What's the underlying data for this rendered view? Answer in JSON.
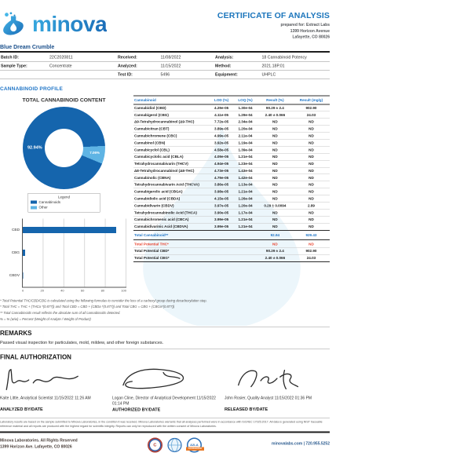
{
  "header": {
    "brand": "minova",
    "title": "CERTIFICATE OF ANALYSIS",
    "prepared_for": "prepared for: Extract Labs",
    "address_line1": "1399 Horizon Avenue",
    "address_line2": "Lafayette, CO 80026",
    "product": "Blue Dream Crumble"
  },
  "sample_info": {
    "batch_label": "Batch ID:",
    "batch": "22C2020811",
    "sample_type_label": "Sample Type:",
    "sample_type": "Concentrate",
    "received_label": "Received:",
    "received": "11/08/2022",
    "analyzed_label": "Analyzed:",
    "analyzed": "11/15/2022",
    "test_id_label": "Test ID:",
    "test_id": "5496",
    "analysis_label": "Analysis:",
    "analysis": "18 Cannabinoid Potency",
    "method_label": "Method:",
    "method": "2021.18P.01",
    "equipment_label": "Equipment:",
    "equipment": "UHPLC"
  },
  "profile_heading": "CANNABINOID PROFILE",
  "chart_data": [
    {
      "type": "pie",
      "title": "TOTAL CANNABINOID CONTENT",
      "labels": [
        "Cannabinoids",
        "Other"
      ],
      "values": [
        92.94,
        7.06
      ],
      "display_labels": [
        "92.94%",
        "7.06%"
      ],
      "colors": [
        "#1565ad",
        "#5fb4e4"
      ],
      "hole": 0.47,
      "legend": {
        "title": "Legend",
        "items": [
          "Cannabinoids",
          "Other"
        ]
      }
    },
    {
      "type": "bar",
      "orientation": "horizontal",
      "categories": [
        "CBD",
        "CBG",
        "CBDV"
      ],
      "values": [
        90.29,
        2.4,
        0.29
      ],
      "xlim": [
        0,
        100
      ],
      "xticks": [
        0,
        20,
        40,
        60,
        80,
        100
      ],
      "grid": true,
      "title": "",
      "xlabel": "",
      "ylabel": ""
    }
  ],
  "table": {
    "headers": [
      "Cannabinoid",
      "LOD (%)",
      "LOQ (%)",
      "Result (%)",
      "Result (mg/g)"
    ],
    "rows": [
      {
        "name": "Cannabidiol (CBD)",
        "lod": "4.29e-05",
        "loq": "1.30e-04",
        "result": "90.29 ± 2.4",
        "mg": "902.90"
      },
      {
        "name": "Cannabigerol (CBG)",
        "lod": "4.11e-05",
        "loq": "1.29e-04",
        "result": "2.40 ± 0.066",
        "mg": "24.03"
      },
      {
        "name": "Δ9-Tetrahydrocannabinol (Δ9-THC)",
        "lod": "7.72e-05",
        "loq": "2.34e-04",
        "result": "ND",
        "mg": "ND"
      },
      {
        "name": "Cannabicitran (CBT)",
        "lod": "3.89e-05",
        "loq": "1.20e-04",
        "result": "ND",
        "mg": "ND"
      },
      {
        "name": "Cannabichromene (CBC)",
        "lod": "4.99e-05",
        "loq": "2.11e-04",
        "result": "ND",
        "mg": "ND"
      },
      {
        "name": "Cannabinol (CBN)",
        "lod": "3.92e-05",
        "loq": "1.19e-04",
        "result": "ND",
        "mg": "ND"
      },
      {
        "name": "Cannabicyclol (CBL)",
        "lod": "4.58e-05",
        "loq": "1.39e-04",
        "result": "ND",
        "mg": "ND"
      },
      {
        "name": "Cannabicyclolic acid (CBLA)",
        "lod": "4.09e-05",
        "loq": "1.21e-04",
        "result": "ND",
        "mg": "ND"
      },
      {
        "name": "Tetrahydrocannabivarin (THCV)",
        "lod": "4.94e-05",
        "loq": "1.23e-04",
        "result": "ND",
        "mg": "ND"
      },
      {
        "name": "Δ8-Tetrahydrocannabinol (Δ8-THC)",
        "lod": "4.73e-05",
        "loq": "1.43e-04",
        "result": "ND",
        "mg": "ND"
      },
      {
        "name": "Cannabinolic (CBNA)",
        "lod": "4.79e-05",
        "loq": "1.42e-04",
        "result": "ND",
        "mg": "ND"
      },
      {
        "name": "Tetrahydrocannabivarin Acid (THCVA)",
        "lod": "3.86e-05",
        "loq": "1.13e-04",
        "result": "ND",
        "mg": "ND"
      },
      {
        "name": "Cannabigerolic acid (CBGA)",
        "lod": "3.98e-05",
        "loq": "1.21e-04",
        "result": "ND",
        "mg": "ND"
      },
      {
        "name": "Cannabidiolic acid (CBDA)",
        "lod": "4.15e-05",
        "loq": "1.26e-04",
        "result": "ND",
        "mg": "ND"
      },
      {
        "name": "Cannabidivarin (CBDV)",
        "lod": "3.97e-05",
        "loq": "1.20e-04",
        "result": "0.29 ± 0.0094",
        "mg": "2.89"
      },
      {
        "name": "Tetrahydrocannabinolic Acid (THCA)",
        "lod": "3.90e-05",
        "loq": "1.17e-04",
        "result": "ND",
        "mg": "ND"
      },
      {
        "name": "Cannabichromenic acid (CBCA)",
        "lod": "3.99e-05",
        "loq": "1.21e-04",
        "result": "ND",
        "mg": "ND"
      },
      {
        "name": "Cannabidivarinic Acid (CBDVA)",
        "lod": "3.99e-05",
        "loq": "1.21e-04",
        "result": "ND",
        "mg": "ND"
      }
    ],
    "totals": [
      {
        "name": "Total Cannabinoid**",
        "lod": "",
        "loq": "",
        "result": "92.94",
        "mg": "929.43",
        "style": "blue"
      },
      {
        "name": "Total Potential THC*",
        "lod": "",
        "loq": "",
        "result": "ND",
        "mg": "ND",
        "style": "red"
      },
      {
        "name": "Total Potential CBD*",
        "lod": "",
        "loq": "",
        "result": "90.29 ± 2.4",
        "mg": "902.90",
        "style": "dark"
      },
      {
        "name": "Total Potential CBG*",
        "lod": "",
        "loq": "",
        "result": "2.40 ± 0.066",
        "mg": "24.03",
        "style": "dark"
      }
    ]
  },
  "footnotes": [
    "* Total Potential THC/CBD/CBG is calculated using the following formulas to consider the loss of a carboxyl group during decarboxylation step.",
    "* Total THC = THC + (THCa *(0.877)) and Total CBD = CBD + (CBDa *(0.877)) and Total CBG = CBG + (CBGa*(0.877))",
    "** Total Cannabinoids result reflects the absolute sum of all cannabinoids detected.",
    "% = % (w/w) = Percent (Weight of Analyte / Weight of Product)"
  ],
  "remarks": {
    "heading": "REMARKS",
    "text": "Passed visual inspection for particulates, mold, mildew, and other foreign substances."
  },
  "authorization": {
    "heading": "FINAL AUTHORIZATION",
    "signers": [
      {
        "name_line": "Kaite Little, Analytical Scientist 11/15/2022 11:26 AM",
        "role": "ANALYZED BY/DATE"
      },
      {
        "name_line": "Logan Cline, Director of Analytical Development 11/15/2022 01:14 PM",
        "role": "AUTHORIZED BY/DATE"
      },
      {
        "name_line": "John Rosier, Quality Analyst 11/15/2022 01:36 PM",
        "role": "RELEASED BY/DATE"
      }
    ]
  },
  "disclaimer": "Laboratory results are based on the sample submitted to Minova Laboratories, in the condition it was received. Minova Laboratories warrants that all analyses performed were in accordance with ISO/IEC 17025:2017. All data is generated using NIST traceable reference material and all reports are produced with the highest regard for scientific integrity. Reports can only be reproduced with the written consent of Minova Laboratories.",
  "footer": {
    "left1": "Minova Laboratories. All Rights Reserved",
    "left2": "1399 Horizon Ave. Lafayette, CO 80026",
    "badge_co": "C",
    "badge_a2la": "A2LA",
    "badge_a2la_strip": "ACCREDITED",
    "right": "minovalabs.com | 720.955.5252"
  },
  "colors": {
    "accent_blue": "#1b75bc",
    "table_blue": "#2176c7",
    "alert_red": "#e8432e",
    "donut_dark": "#1565ad",
    "donut_light": "#5fb4e4"
  }
}
